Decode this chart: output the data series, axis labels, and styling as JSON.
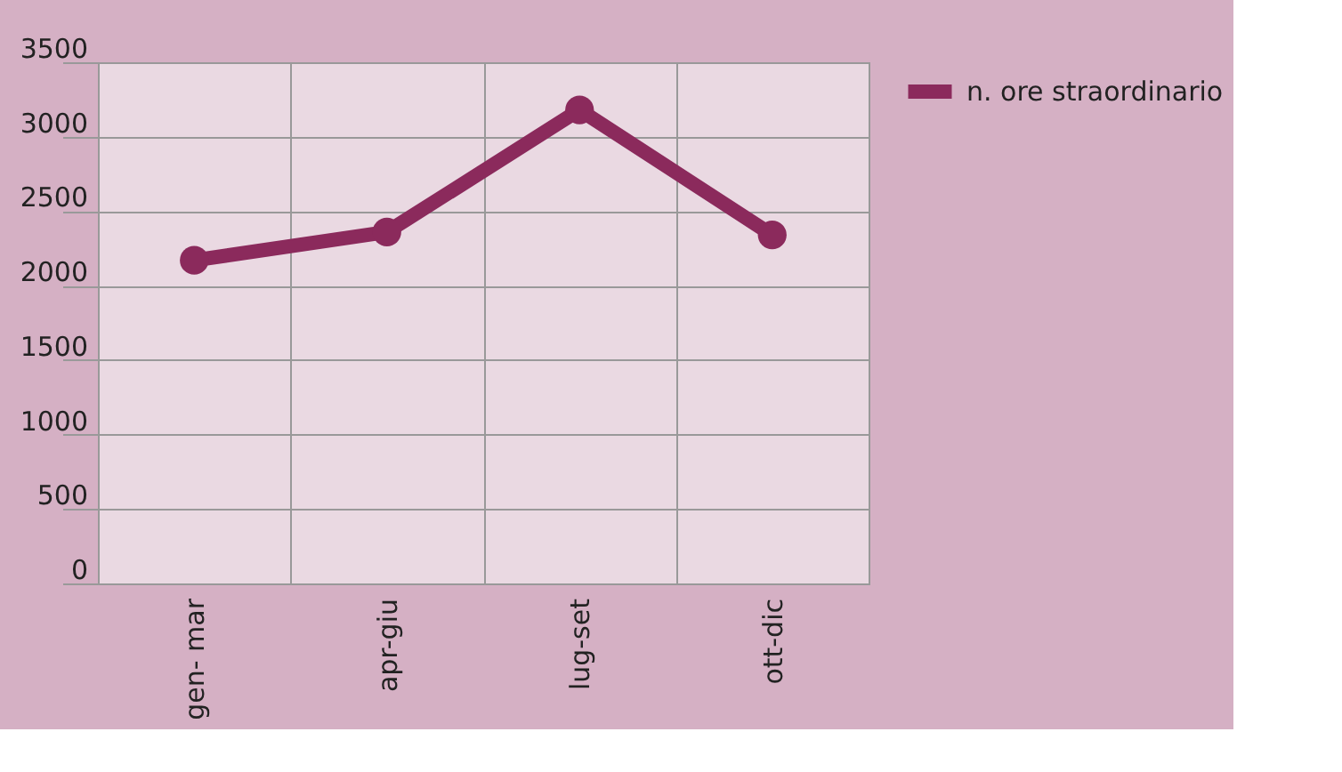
{
  "chart_data": {
    "type": "line",
    "categories": [
      "gen- mar",
      "apr-giu",
      "lug-set",
      "ott-dic"
    ],
    "series": [
      {
        "name": "n. ore straordinario",
        "color": "#8b2a5c",
        "values": [
          2170,
          2360,
          3180,
          2340
        ]
      }
    ],
    "ylim": [
      0,
      3500
    ],
    "yticks": [
      0,
      500,
      1000,
      1500,
      2000,
      2500,
      3000,
      3500
    ],
    "grid": true,
    "legend": "top right",
    "marker": "circle",
    "line_style": "solid"
  }
}
